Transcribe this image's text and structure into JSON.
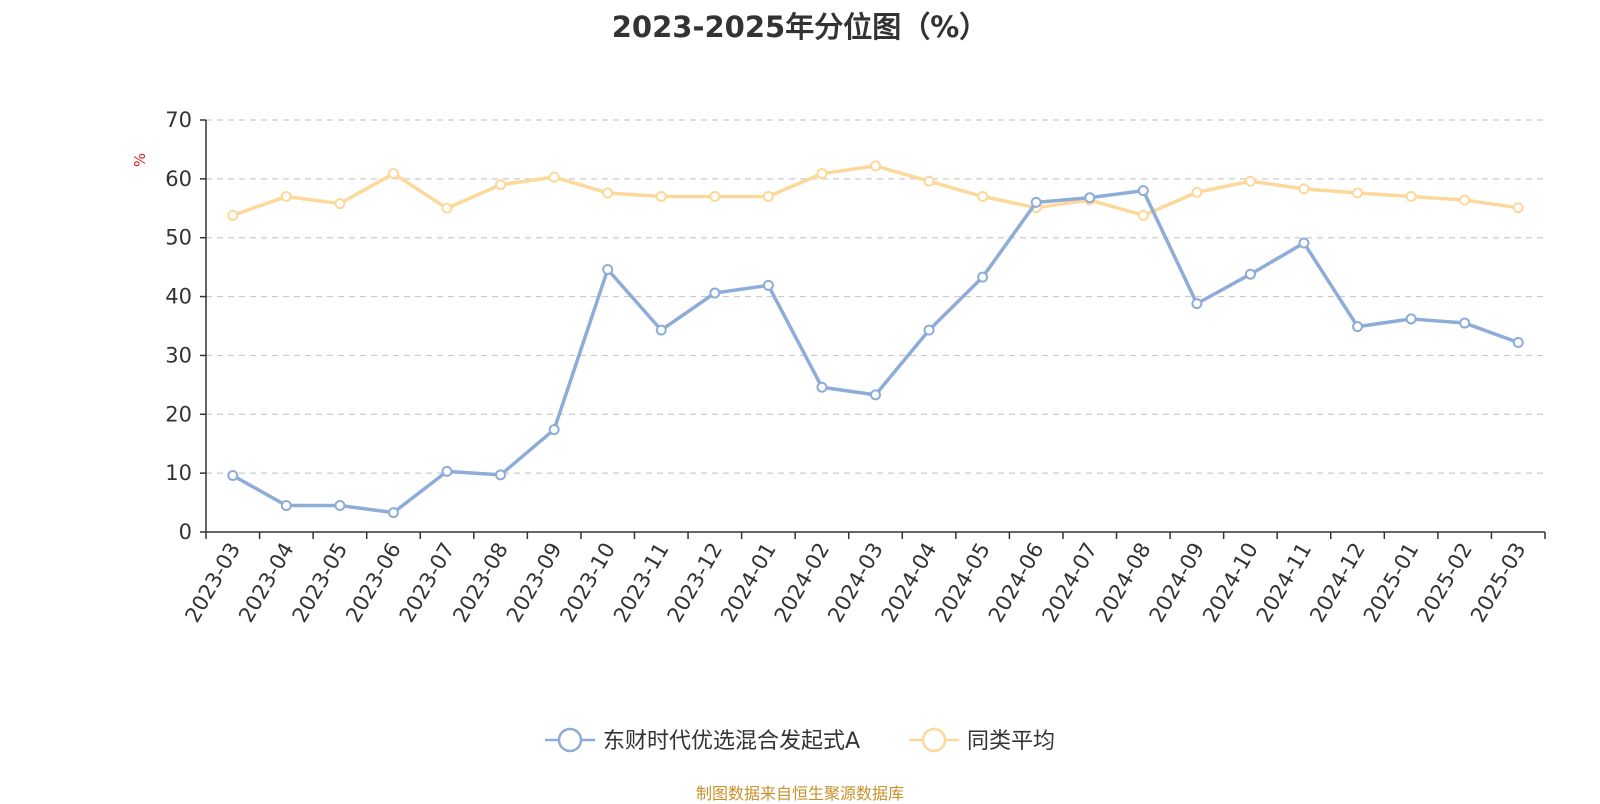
{
  "title": "2023-2025年分位图（%）",
  "source_note": "制图数据来自恒生聚源数据库",
  "chart_data": {
    "type": "line",
    "title": "2023-2025年分位图（%）",
    "ylabel": "%",
    "xlabel": "",
    "ylim": [
      0,
      70
    ],
    "yticks": [
      0,
      10,
      20,
      30,
      40,
      50,
      60,
      70
    ],
    "grid": true,
    "legend_position": "bottom",
    "categories": [
      "2023-03",
      "2023-04",
      "2023-05",
      "2023-06",
      "2023-07",
      "2023-08",
      "2023-09",
      "2023-10",
      "2023-11",
      "2023-12",
      "2024-01",
      "2024-02",
      "2024-03",
      "2024-04",
      "2024-05",
      "2024-06",
      "2024-07",
      "2024-08",
      "2024-09",
      "2024-10",
      "2024-11",
      "2024-12",
      "2025-01",
      "2025-02",
      "2025-03"
    ],
    "series": [
      {
        "name": "东财时代优选混合发起式A",
        "color": "#8eacd8",
        "values": [
          9.6,
          4.5,
          4.5,
          3.3,
          10.3,
          9.7,
          17.4,
          44.6,
          34.3,
          40.6,
          41.9,
          24.6,
          23.3,
          34.3,
          43.3,
          56.0,
          56.8,
          58.0,
          38.8,
          43.8,
          49.1,
          34.9,
          36.2,
          35.5,
          32.2
        ]
      },
      {
        "name": "同类平均",
        "color": "#fcd99a",
        "values": [
          53.8,
          57.0,
          55.8,
          60.9,
          55.0,
          59.0,
          60.3,
          57.6,
          57.0,
          57.0,
          57.0,
          60.9,
          62.2,
          59.6,
          57.0,
          55.1,
          56.4,
          53.8,
          57.7,
          59.6,
          58.3,
          57.6,
          57.0,
          56.4,
          55.1
        ]
      }
    ]
  }
}
